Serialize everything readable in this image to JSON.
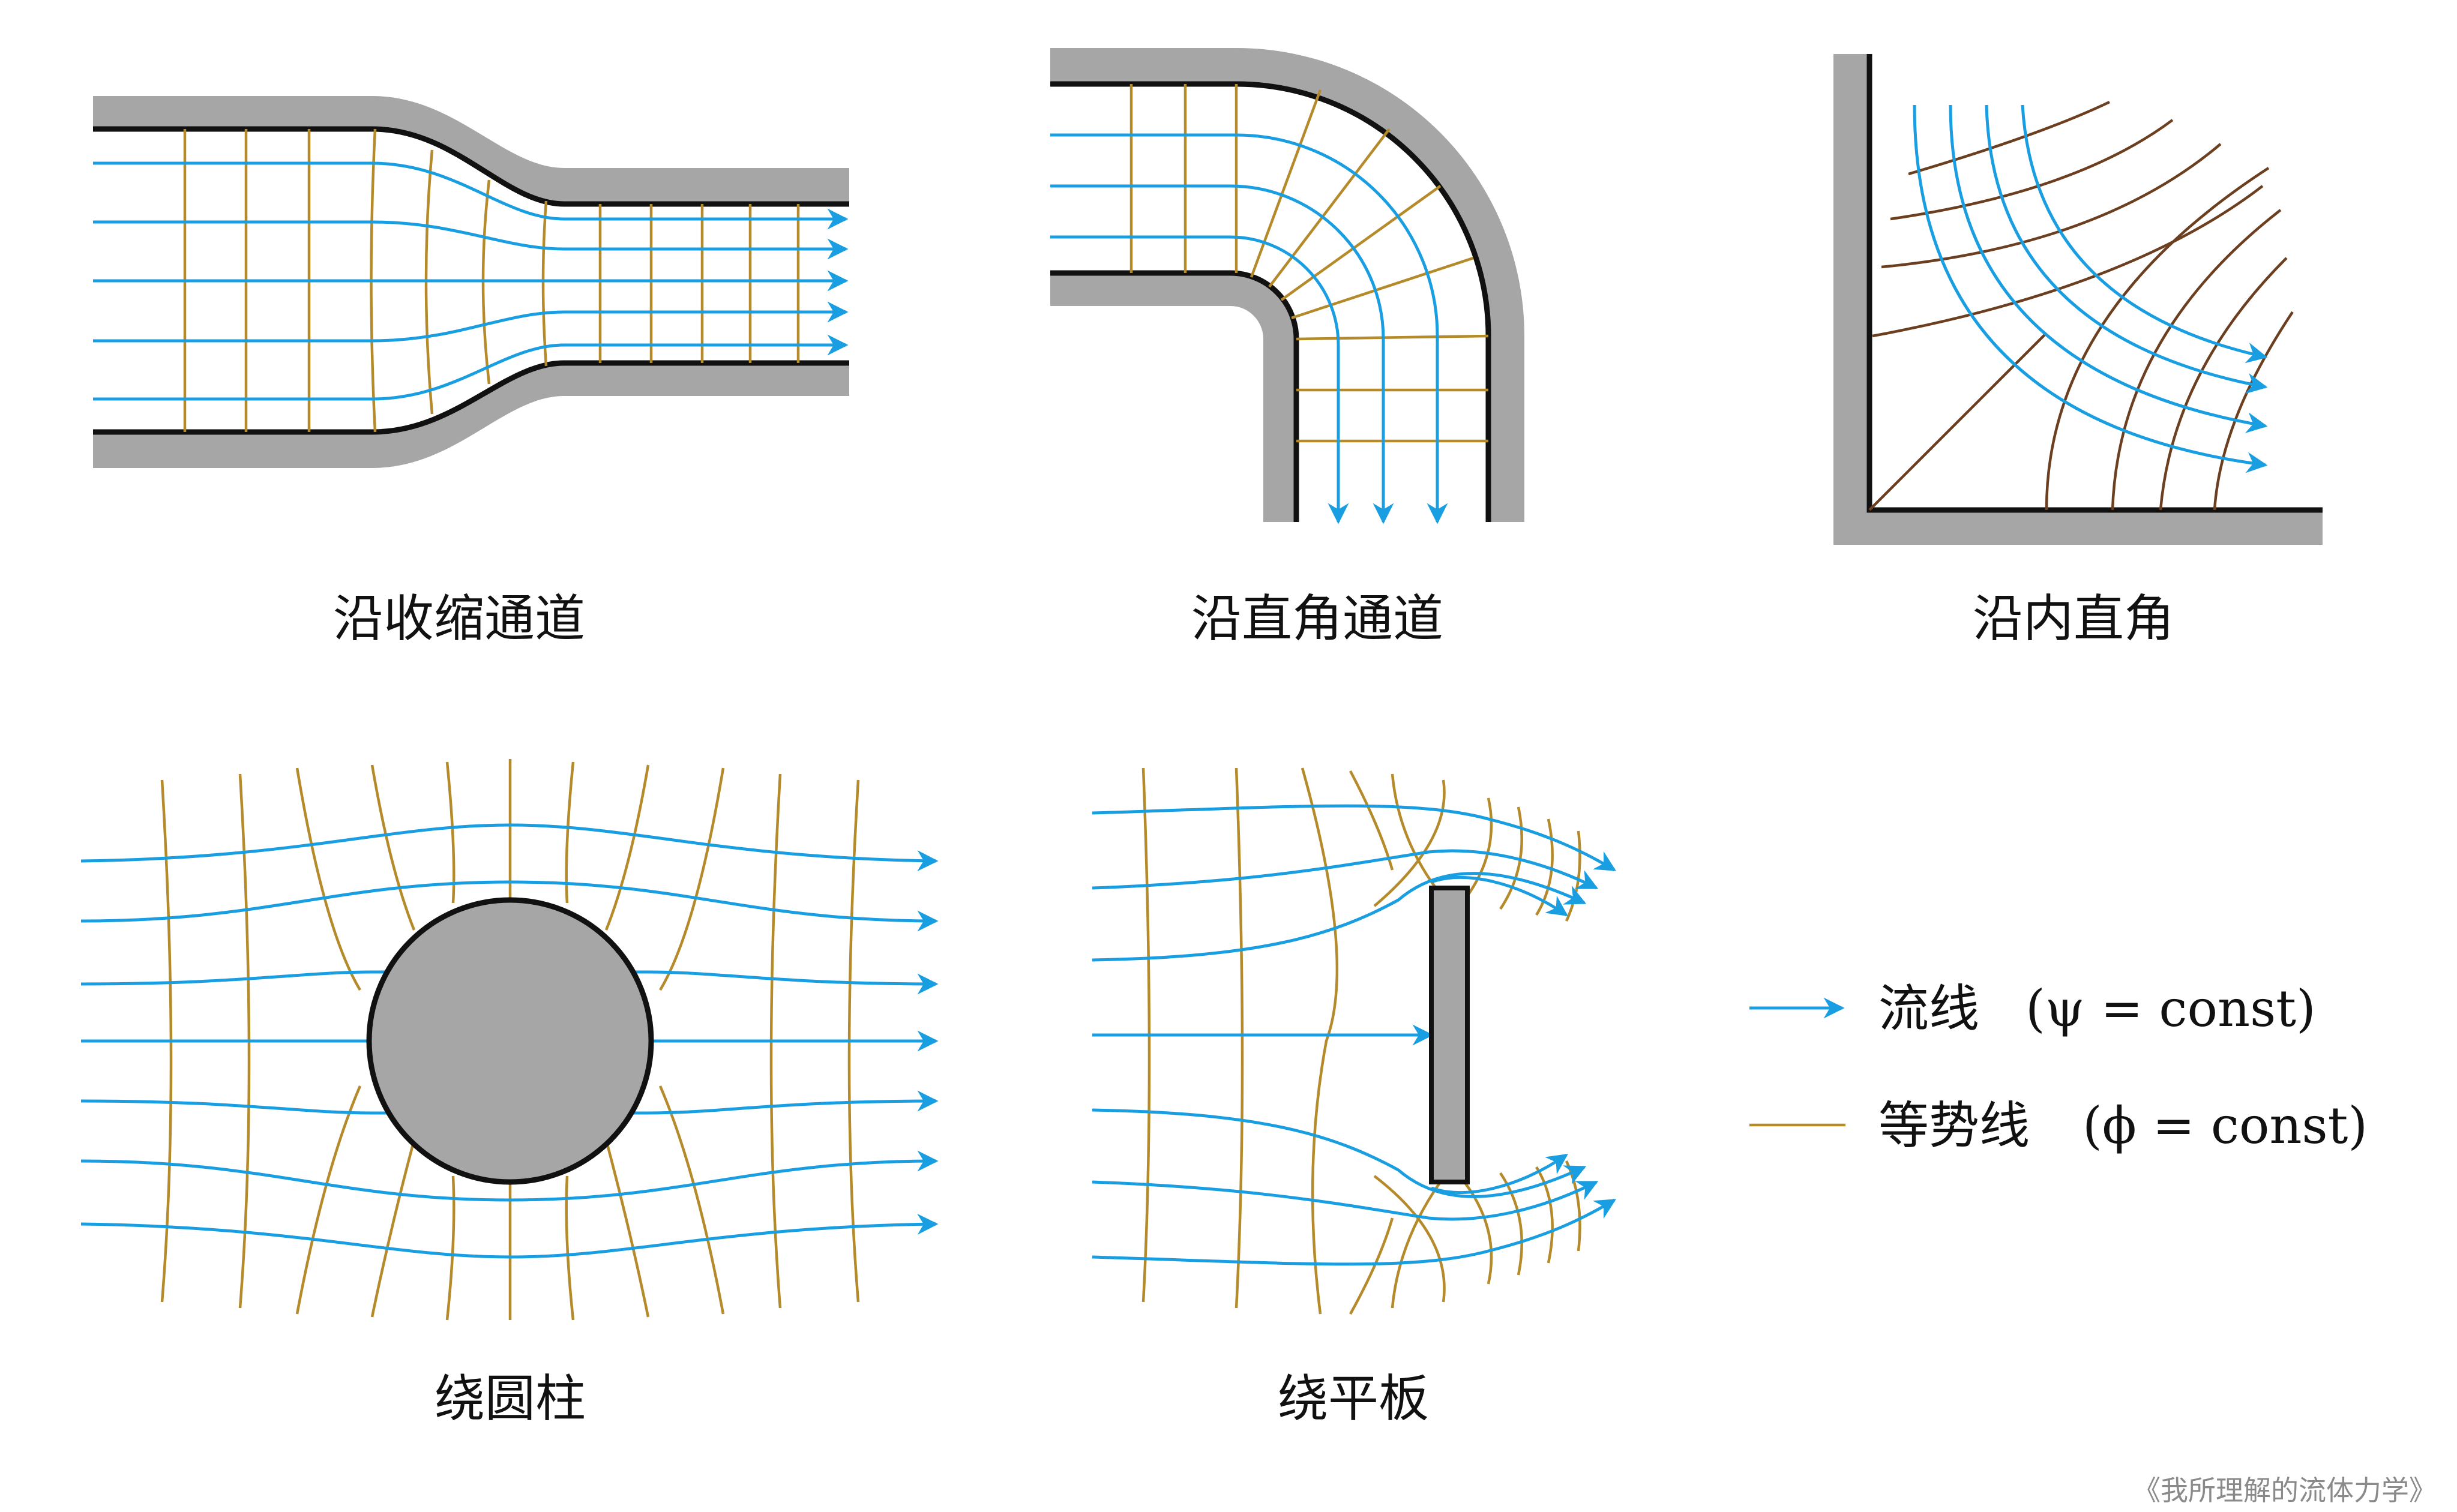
{
  "panels": {
    "contraction": {
      "caption": "沿收缩通道"
    },
    "elbow": {
      "caption": "沿直角通道"
    },
    "corner": {
      "caption": "沿内直角"
    },
    "cylinder": {
      "caption": "绕圆柱"
    },
    "plate": {
      "caption": "绕平板"
    }
  },
  "legend": {
    "streamline": {
      "label": "流线",
      "formula": "(ψ = const)"
    },
    "equipotential": {
      "label": "等势线",
      "formula": "(ϕ = const)"
    }
  },
  "watermark": "《我所理解的流体力学》",
  "colors": {
    "streamline": "#1a9ee2",
    "equipotential": "#b58a2a",
    "equipotential_dark": "#6b3f1f",
    "wall": "#a6a6a6",
    "wall_edge": "#111111"
  }
}
